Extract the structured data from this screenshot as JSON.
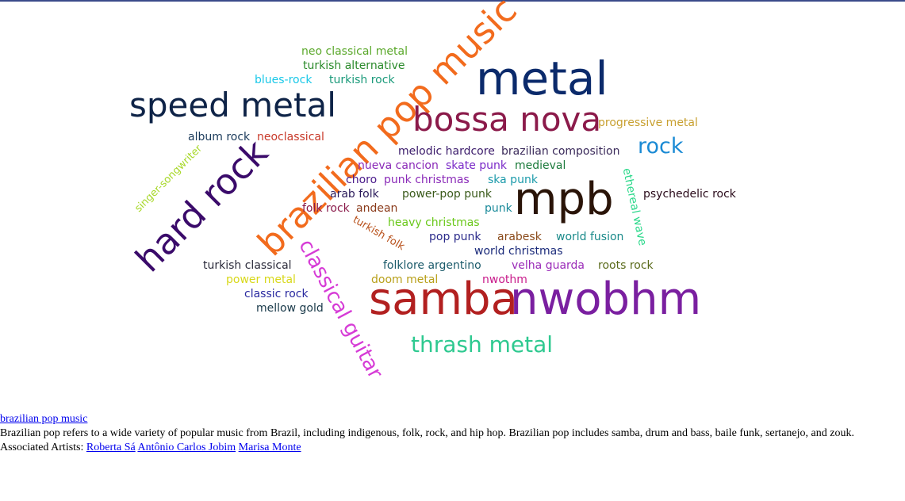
{
  "tag_cloud": {
    "tags": [
      {
        "id": "metal",
        "text": "metal",
        "color": "#0b2a6b"
      },
      {
        "id": "speed-metal",
        "text": "speed metal",
        "color": "#0e2347"
      },
      {
        "id": "brazilian-pop-music",
        "text": "brazilian pop music",
        "color": "#f26b1d"
      },
      {
        "id": "bossa-nova",
        "text": "bossa nova",
        "color": "#8b1a4a"
      },
      {
        "id": "mpb",
        "text": "mpb",
        "color": "#2a1408"
      },
      {
        "id": "samba",
        "text": "samba",
        "color": "#b22020"
      },
      {
        "id": "nwobhm",
        "text": "nwobhm",
        "color": "#7a1fa0"
      },
      {
        "id": "hard-rock",
        "text": "hard rock",
        "color": "#3a0a6a"
      },
      {
        "id": "classical-guitar",
        "text": "classical guitar",
        "color": "#d63bd6"
      },
      {
        "id": "thrash-metal",
        "text": "thrash metal",
        "color": "#2ec990"
      },
      {
        "id": "rock",
        "text": "rock",
        "color": "#1a8ad4"
      },
      {
        "id": "neo-classical-metal",
        "text": "neo classical metal",
        "color": "#5aa82a"
      },
      {
        "id": "turkish-alternative",
        "text": "turkish alternative",
        "color": "#2a8a2a"
      },
      {
        "id": "blues-rock",
        "text": "blues-rock",
        "color": "#1ac8e8"
      },
      {
        "id": "turkish-rock",
        "text": "turkish rock",
        "color": "#1a9a7a"
      },
      {
        "id": "progressive-metal",
        "text": "progressive metal",
        "color": "#c8a030"
      },
      {
        "id": "album-rock",
        "text": "album rock",
        "color": "#1a3a5a"
      },
      {
        "id": "neoclassical",
        "text": "neoclassical",
        "color": "#c83a2a"
      },
      {
        "id": "singer-songwriter",
        "text": "singer-songwriter",
        "color": "#a8d82a"
      },
      {
        "id": "melodic-hardcore",
        "text": "melodic hardcore",
        "color": "#3a1a6a"
      },
      {
        "id": "brazilian-composition",
        "text": "brazilian composition",
        "color": "#3a2a5a"
      },
      {
        "id": "nueva-cancion",
        "text": "nueva cancion",
        "color": "#8a2ab8"
      },
      {
        "id": "skate-punk",
        "text": "skate punk",
        "color": "#7a2ac8"
      },
      {
        "id": "medieval",
        "text": "medieval",
        "color": "#1a7a3a"
      },
      {
        "id": "ethereal-wave",
        "text": "ethereal wave",
        "color": "#2ad88a"
      },
      {
        "id": "choro",
        "text": "choro",
        "color": "#4a1a8a"
      },
      {
        "id": "punk-christmas",
        "text": "punk christmas",
        "color": "#8a2ab8"
      },
      {
        "id": "ska-punk",
        "text": "ska punk",
        "color": "#1a9aaa"
      },
      {
        "id": "arab-folk",
        "text": "arab folk",
        "color": "#2a1a5a"
      },
      {
        "id": "power-pop-punk",
        "text": "power-pop punk",
        "color": "#3a5a1a"
      },
      {
        "id": "psychedelic-rock",
        "text": "psychedelic rock",
        "color": "#2a0a1a"
      },
      {
        "id": "folk-rock",
        "text": "folk rock",
        "color": "#8a1a4a"
      },
      {
        "id": "andean",
        "text": "andean",
        "color": "#8a3a1a"
      },
      {
        "id": "punk",
        "text": "punk",
        "color": "#1a8a9a"
      },
      {
        "id": "heavy-christmas",
        "text": "heavy christmas",
        "color": "#6ac81a"
      },
      {
        "id": "turkish-folk",
        "text": "turkish folk",
        "color": "#b8501a"
      },
      {
        "id": "pop-punk",
        "text": "pop punk",
        "color": "#2a2a8a"
      },
      {
        "id": "arabesk",
        "text": "arabesk",
        "color": "#8a4a1a"
      },
      {
        "id": "world-fusion",
        "text": "world fusion",
        "color": "#1a8a8a"
      },
      {
        "id": "world-christmas",
        "text": "world christmas",
        "color": "#1a2a7a"
      },
      {
        "id": "turkish-classical",
        "text": "turkish classical",
        "color": "#2a2a3a"
      },
      {
        "id": "folklore-argentino",
        "text": "folklore argentino",
        "color": "#1a5a6a"
      },
      {
        "id": "velha-guarda",
        "text": "velha guarda",
        "color": "#9a2ab8"
      },
      {
        "id": "roots-rock",
        "text": "roots rock",
        "color": "#5a6a1a"
      },
      {
        "id": "power-metal",
        "text": "power metal",
        "color": "#d8d81a"
      },
      {
        "id": "doom-metal",
        "text": "doom metal",
        "color": "#b8a01a"
      },
      {
        "id": "nwothm",
        "text": "nwothm",
        "color": "#c81a8a"
      },
      {
        "id": "classic-rock",
        "text": "classic rock",
        "color": "#2a2aa0"
      },
      {
        "id": "mellow-gold",
        "text": "mellow gold",
        "color": "#1a3a4a"
      }
    ]
  },
  "detail": {
    "genre_link": "brazilian pop music",
    "description": "Brazilian pop refers to a wide variety of popular music from Brazil, including indigenous, folk, rock, and hip hop. Brazilian pop includes samba, drum and bass, baile funk, sertanejo, and zouk.",
    "artists_label": "Associated Artists:",
    "artists": [
      "Roberta Sá",
      "Antônio Carlos Jobim",
      "Marisa Monte"
    ]
  }
}
